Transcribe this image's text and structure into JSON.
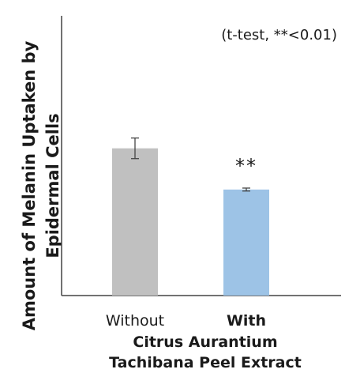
{
  "chart_data": {
    "type": "bar",
    "ylabel_lines": [
      "Amount of Melanin Uptaken by",
      "Epidermal Cells"
    ],
    "note": "(t-test, **<0.01)",
    "categories": [
      "Without",
      "With"
    ],
    "values": [
      100,
      72
    ],
    "errors": [
      7,
      1
    ],
    "significance": [
      "",
      "**"
    ],
    "group_label_lines": [
      "Citrus Aurantium",
      "Tachibana Peel Extract"
    ],
    "ylim": [
      0,
      190
    ],
    "grid": false,
    "colors": [
      "#c0c0c0",
      "#9dc3e6"
    ]
  }
}
